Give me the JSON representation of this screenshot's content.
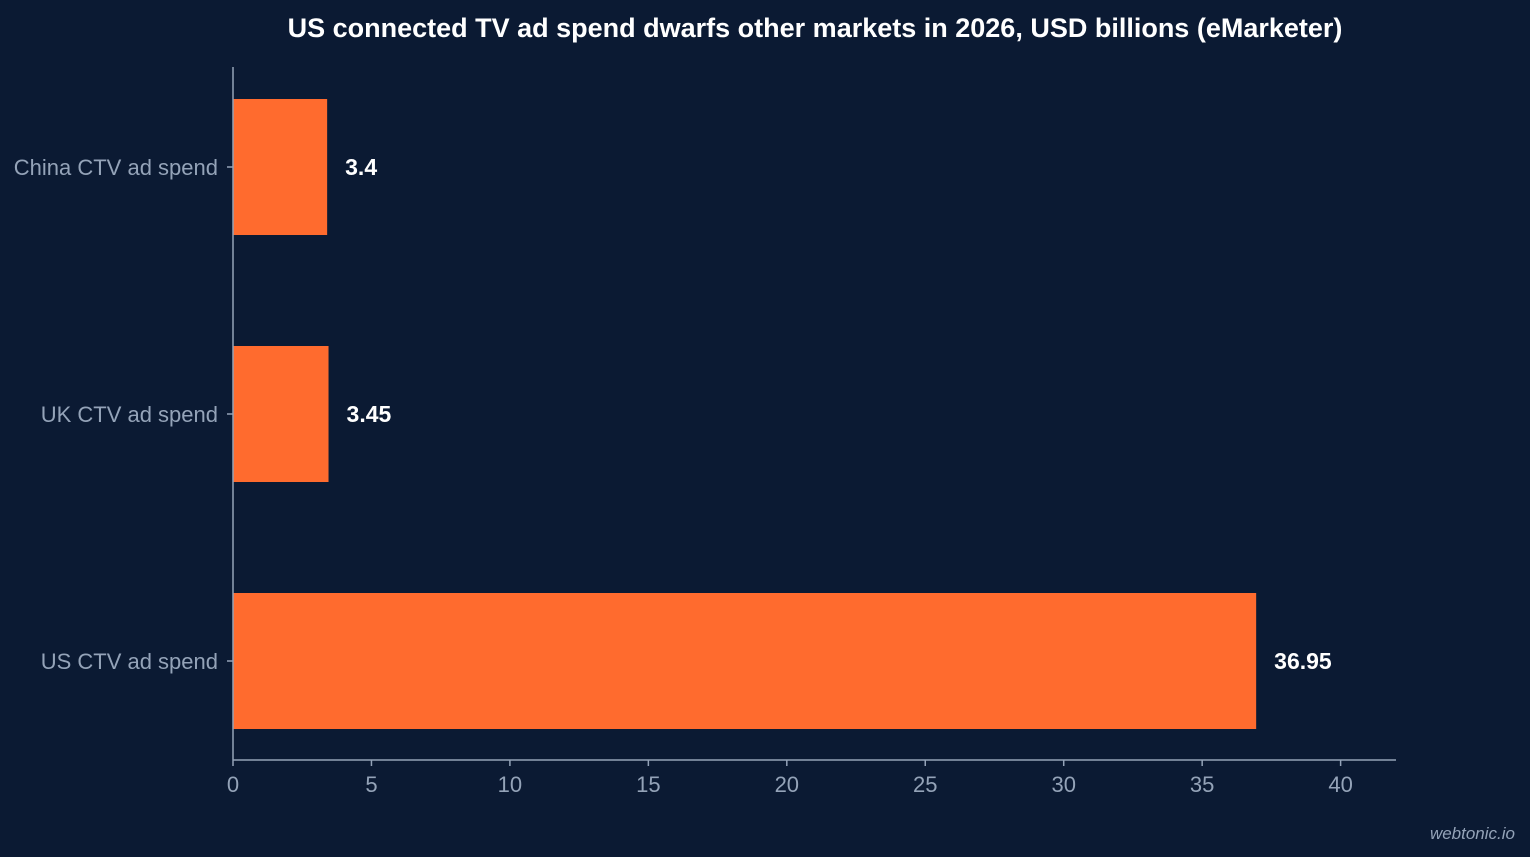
{
  "chart_data": {
    "type": "bar",
    "orientation": "horizontal",
    "title": "US connected TV ad spend dwarfs other markets in 2026, USD billions (eMarketer)",
    "categories": [
      "China CTV ad spend",
      "UK CTV ad spend",
      "US CTV ad spend"
    ],
    "values": [
      3.4,
      3.45,
      36.95
    ],
    "data_labels": [
      "3.4",
      "3.45",
      "36.95"
    ],
    "xlim": [
      0,
      42
    ],
    "x_ticks": [
      0,
      5,
      10,
      15,
      20,
      25,
      30,
      35,
      40
    ],
    "xlabel": "",
    "ylabel": "",
    "grid": false,
    "bar_color": "#ff6b2e"
  },
  "watermark": "webtonic.io",
  "colors": {
    "background": "#0b1a33",
    "bar": "#ff6b2e",
    "axis": "#94a3b8",
    "text": "#ffffff"
  }
}
